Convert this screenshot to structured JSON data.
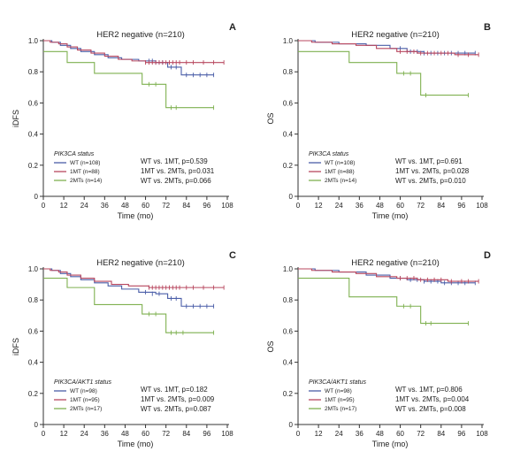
{
  "colors": {
    "WT": "#4a5ea8",
    "1MT": "#b8475f",
    "2MTs": "#7fb150"
  },
  "chart_data": [
    {
      "type": "line",
      "letter": "A",
      "title": "HER2 negative (n=210)",
      "xlabel": "Time (mo)",
      "ylabel": "iDFS",
      "xlim": [
        0,
        108
      ],
      "ylim": [
        0,
        1
      ],
      "xticks": [
        0,
        12,
        24,
        36,
        48,
        60,
        72,
        84,
        96,
        108
      ],
      "yticks": [
        0,
        0.2,
        0.4,
        0.6,
        0.8,
        1.0
      ],
      "ytick_labels": [
        "0",
        "0.2",
        "0.4",
        "0.6",
        "0.8",
        "1.0"
      ],
      "legend_title": "PIK3CA status",
      "series": [
        {
          "name": "WT (n=108)",
          "key": "WT",
          "steps": [
            [
              0,
              1
            ],
            [
              5,
              0.99
            ],
            [
              10,
              0.97
            ],
            [
              16,
              0.95
            ],
            [
              22,
              0.93
            ],
            [
              30,
              0.91
            ],
            [
              38,
              0.89
            ],
            [
              46,
              0.88
            ],
            [
              56,
              0.87
            ],
            [
              66,
              0.86
            ],
            [
              73,
              0.83
            ],
            [
              81,
              0.78
            ],
            [
              100,
              0.78
            ]
          ],
          "censor": [
            [
              62,
              0.87
            ],
            [
              64,
              0.87
            ],
            [
              66,
              0.86
            ],
            [
              68,
              0.86
            ],
            [
              70,
              0.86
            ],
            [
              75,
              0.83
            ],
            [
              78,
              0.83
            ],
            [
              84,
              0.78
            ],
            [
              88,
              0.78
            ],
            [
              92,
              0.78
            ],
            [
              96,
              0.78
            ],
            [
              100,
              0.78
            ]
          ]
        },
        {
          "name": "1MT (n=88)",
          "key": "1MT",
          "steps": [
            [
              0,
              1
            ],
            [
              4,
              0.99
            ],
            [
              9,
              0.98
            ],
            [
              14,
              0.96
            ],
            [
              20,
              0.94
            ],
            [
              28,
              0.92
            ],
            [
              36,
              0.9
            ],
            [
              44,
              0.88
            ],
            [
              52,
              0.87
            ],
            [
              60,
              0.86
            ],
            [
              106,
              0.86
            ]
          ],
          "censor": [
            [
              60,
              0.86
            ],
            [
              62,
              0.86
            ],
            [
              64,
              0.86
            ],
            [
              66,
              0.86
            ],
            [
              68,
              0.86
            ],
            [
              70,
              0.86
            ],
            [
              72,
              0.86
            ],
            [
              74,
              0.86
            ],
            [
              76,
              0.86
            ],
            [
              78,
              0.86
            ],
            [
              80,
              0.86
            ],
            [
              84,
              0.86
            ],
            [
              88,
              0.86
            ],
            [
              94,
              0.86
            ],
            [
              100,
              0.86
            ],
            [
              106,
              0.86
            ]
          ]
        },
        {
          "name": "2MTs (n=14)",
          "key": "2MTs",
          "steps": [
            [
              0,
              0.93
            ],
            [
              14,
              0.86
            ],
            [
              30,
              0.79
            ],
            [
              58,
              0.72
            ],
            [
              72,
              0.57
            ],
            [
              100,
              0.57
            ]
          ],
          "censor": [
            [
              62,
              0.72
            ],
            [
              66,
              0.72
            ],
            [
              75,
              0.57
            ],
            [
              78,
              0.57
            ],
            [
              100,
              0.57
            ]
          ]
        }
      ],
      "pvalues": [
        "WT vs. 1MT, p=0.539",
        "1MT vs. 2MTs, p=0.031",
        "WT vs. 2MTs, p=0.066"
      ]
    },
    {
      "type": "line",
      "letter": "B",
      "title": "HER2 negative (n=210)",
      "xlabel": "Time (mo)",
      "ylabel": "OS",
      "xlim": [
        0,
        108
      ],
      "ylim": [
        0,
        1
      ],
      "xticks": [
        0,
        12,
        24,
        36,
        48,
        60,
        72,
        84,
        96,
        108
      ],
      "yticks": [
        0,
        0.2,
        0.4,
        0.6,
        0.8,
        1.0
      ],
      "ytick_labels": [
        "0",
        "0.2",
        "0.4",
        "0.6",
        "0.8",
        "1.0"
      ],
      "legend_title": "PIK3CA status",
      "series": [
        {
          "name": "WT (n=108)",
          "key": "WT",
          "steps": [
            [
              0,
              1
            ],
            [
              10,
              0.99
            ],
            [
              24,
              0.98
            ],
            [
              40,
              0.97
            ],
            [
              54,
              0.95
            ],
            [
              64,
              0.93
            ],
            [
              74,
              0.92
            ],
            [
              104,
              0.92
            ]
          ],
          "censor": [
            [
              60,
              0.95
            ],
            [
              66,
              0.93
            ],
            [
              70,
              0.93
            ],
            [
              74,
              0.92
            ],
            [
              78,
              0.92
            ],
            [
              82,
              0.92
            ],
            [
              86,
              0.92
            ],
            [
              90,
              0.92
            ],
            [
              94,
              0.92
            ],
            [
              98,
              0.92
            ],
            [
              104,
              0.92
            ]
          ]
        },
        {
          "name": "1MT (n=88)",
          "key": "1MT",
          "steps": [
            [
              0,
              1
            ],
            [
              8,
              0.99
            ],
            [
              20,
              0.98
            ],
            [
              34,
              0.97
            ],
            [
              46,
              0.95
            ],
            [
              58,
              0.93
            ],
            [
              70,
              0.92
            ],
            [
              92,
              0.91
            ],
            [
              106,
              0.91
            ]
          ],
          "censor": [
            [
              60,
              0.93
            ],
            [
              64,
              0.93
            ],
            [
              68,
              0.93
            ],
            [
              72,
              0.92
            ],
            [
              76,
              0.92
            ],
            [
              80,
              0.92
            ],
            [
              84,
              0.92
            ],
            [
              88,
              0.92
            ],
            [
              94,
              0.91
            ],
            [
              100,
              0.91
            ],
            [
              106,
              0.91
            ]
          ]
        },
        {
          "name": "2MTs (n=14)",
          "key": "2MTs",
          "steps": [
            [
              0,
              0.93
            ],
            [
              30,
              0.86
            ],
            [
              58,
              0.79
            ],
            [
              72,
              0.65
            ],
            [
              100,
              0.65
            ]
          ],
          "censor": [
            [
              62,
              0.79
            ],
            [
              66,
              0.79
            ],
            [
              75,
              0.65
            ],
            [
              100,
              0.65
            ]
          ]
        }
      ],
      "pvalues": [
        "WT vs. 1MT, p=0.691",
        "1MT vs. 2MTs, p=0.028",
        "WT vs. 2MTs, p=0.010"
      ]
    },
    {
      "type": "line",
      "letter": "C",
      "title": "HER2 negative (n=210)",
      "xlabel": "Time (mo)",
      "ylabel": "iDFS",
      "xlim": [
        0,
        108
      ],
      "ylim": [
        0,
        1
      ],
      "xticks": [
        0,
        12,
        24,
        36,
        48,
        60,
        72,
        84,
        96,
        108
      ],
      "yticks": [
        0,
        0.2,
        0.4,
        0.6,
        0.8,
        1.0
      ],
      "ytick_labels": [
        "0",
        "0.2",
        "0.4",
        "0.6",
        "0.8",
        "1.0"
      ],
      "legend_title": "PIK3CA/AKT1 status",
      "series": [
        {
          "name": "WT (n=98)",
          "key": "WT",
          "steps": [
            [
              0,
              1
            ],
            [
              5,
              0.99
            ],
            [
              10,
              0.97
            ],
            [
              16,
              0.95
            ],
            [
              22,
              0.93
            ],
            [
              30,
              0.91
            ],
            [
              38,
              0.89
            ],
            [
              46,
              0.87
            ],
            [
              56,
              0.85
            ],
            [
              66,
              0.84
            ],
            [
              73,
              0.81
            ],
            [
              81,
              0.76
            ],
            [
              100,
              0.76
            ]
          ],
          "censor": [
            [
              60,
              0.85
            ],
            [
              64,
              0.84
            ],
            [
              68,
              0.84
            ],
            [
              75,
              0.81
            ],
            [
              78,
              0.81
            ],
            [
              84,
              0.76
            ],
            [
              88,
              0.76
            ],
            [
              92,
              0.76
            ],
            [
              96,
              0.76
            ],
            [
              100,
              0.76
            ]
          ]
        },
        {
          "name": "1MT (n=95)",
          "key": "1MT",
          "steps": [
            [
              0,
              1
            ],
            [
              4,
              0.99
            ],
            [
              9,
              0.98
            ],
            [
              14,
              0.96
            ],
            [
              22,
              0.94
            ],
            [
              30,
              0.92
            ],
            [
              40,
              0.9
            ],
            [
              50,
              0.89
            ],
            [
              62,
              0.88
            ],
            [
              106,
              0.88
            ]
          ],
          "censor": [
            [
              62,
              0.88
            ],
            [
              64,
              0.88
            ],
            [
              66,
              0.88
            ],
            [
              68,
              0.88
            ],
            [
              70,
              0.88
            ],
            [
              72,
              0.88
            ],
            [
              74,
              0.88
            ],
            [
              76,
              0.88
            ],
            [
              78,
              0.88
            ],
            [
              80,
              0.88
            ],
            [
              84,
              0.88
            ],
            [
              88,
              0.88
            ],
            [
              94,
              0.88
            ],
            [
              100,
              0.88
            ],
            [
              106,
              0.88
            ]
          ]
        },
        {
          "name": "2MTs (n=17)",
          "key": "2MTs",
          "steps": [
            [
              0,
              0.94
            ],
            [
              14,
              0.88
            ],
            [
              30,
              0.77
            ],
            [
              58,
              0.71
            ],
            [
              72,
              0.59
            ],
            [
              100,
              0.59
            ]
          ],
          "censor": [
            [
              62,
              0.71
            ],
            [
              66,
              0.71
            ],
            [
              75,
              0.59
            ],
            [
              78,
              0.59
            ],
            [
              82,
              0.59
            ],
            [
              100,
              0.59
            ]
          ]
        }
      ],
      "pvalues": [
        "WT vs. 1MT, p=0.182",
        "1MT vs. 2MTs, p=0.009",
        "WT vs. 2MTs, p=0.087"
      ]
    },
    {
      "type": "line",
      "letter": "D",
      "title": "HER2 negative (n=210)",
      "xlabel": "Time (mo)",
      "ylabel": "OS",
      "xlim": [
        0,
        108
      ],
      "ylim": [
        0,
        1
      ],
      "xticks": [
        0,
        12,
        24,
        36,
        48,
        60,
        72,
        84,
        96,
        108
      ],
      "yticks": [
        0,
        0.2,
        0.4,
        0.6,
        0.8,
        1.0
      ],
      "ytick_labels": [
        "0",
        "0.2",
        "0.4",
        "0.6",
        "0.8",
        "1.0"
      ],
      "legend_title": "PIK3CA/AKT1 status",
      "series": [
        {
          "name": "WT (n=98)",
          "key": "WT",
          "steps": [
            [
              0,
              1
            ],
            [
              10,
              0.99
            ],
            [
              24,
              0.98
            ],
            [
              40,
              0.96
            ],
            [
              54,
              0.94
            ],
            [
              64,
              0.93
            ],
            [
              74,
              0.92
            ],
            [
              84,
              0.91
            ],
            [
              104,
              0.91
            ]
          ],
          "censor": [
            [
              60,
              0.94
            ],
            [
              66,
              0.93
            ],
            [
              70,
              0.93
            ],
            [
              74,
              0.92
            ],
            [
              78,
              0.92
            ],
            [
              82,
              0.92
            ],
            [
              86,
              0.91
            ],
            [
              90,
              0.91
            ],
            [
              94,
              0.91
            ],
            [
              98,
              0.91
            ],
            [
              104,
              0.91
            ]
          ]
        },
        {
          "name": "1MT (n=95)",
          "key": "1MT",
          "steps": [
            [
              0,
              1
            ],
            [
              8,
              0.99
            ],
            [
              20,
              0.98
            ],
            [
              34,
              0.97
            ],
            [
              46,
              0.95
            ],
            [
              58,
              0.94
            ],
            [
              70,
              0.93
            ],
            [
              88,
              0.92
            ],
            [
              106,
              0.92
            ]
          ],
          "censor": [
            [
              60,
              0.94
            ],
            [
              64,
              0.94
            ],
            [
              68,
              0.94
            ],
            [
              72,
              0.93
            ],
            [
              76,
              0.93
            ],
            [
              80,
              0.93
            ],
            [
              84,
              0.93
            ],
            [
              90,
              0.92
            ],
            [
              96,
              0.92
            ],
            [
              100,
              0.92
            ],
            [
              106,
              0.92
            ]
          ]
        },
        {
          "name": "2MTs (n=17)",
          "key": "2MTs",
          "steps": [
            [
              0,
              0.94
            ],
            [
              30,
              0.82
            ],
            [
              58,
              0.76
            ],
            [
              72,
              0.65
            ],
            [
              100,
              0.65
            ]
          ],
          "censor": [
            [
              62,
              0.76
            ],
            [
              66,
              0.76
            ],
            [
              75,
              0.65
            ],
            [
              78,
              0.65
            ],
            [
              100,
              0.65
            ]
          ]
        }
      ],
      "pvalues": [
        "WT vs. 1MT, p=0.806",
        "1MT vs. 2MTs, p=0.004",
        "WT vs. 2MTs, p=0.008"
      ]
    }
  ]
}
